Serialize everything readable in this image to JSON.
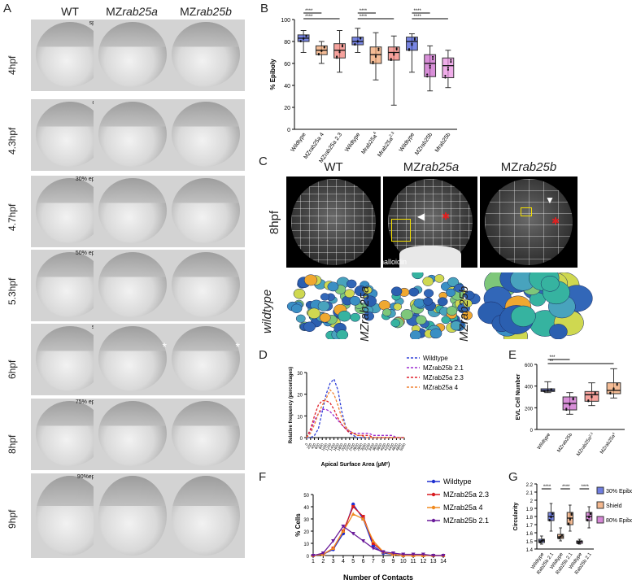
{
  "panels": {
    "A": "A",
    "B": "B",
    "C": "C",
    "D": "D",
    "E": "E",
    "F": "F",
    "G": "G"
  },
  "panelA": {
    "columns": [
      "WT",
      "MZrab25a",
      "MZrab25b"
    ],
    "rows": [
      {
        "time": "4hpf",
        "stage": "sphere"
      },
      {
        "time": "4.3hpf",
        "stage": "dome"
      },
      {
        "time": "4.7hpf",
        "stage": "30% epiboly"
      },
      {
        "time": "5.3hpf",
        "stage": "50% epiboly"
      },
      {
        "time": "6hpf",
        "stage": "shield"
      },
      {
        "time": "8hpf",
        "stage": "75% epiboly"
      },
      {
        "time": "9hpf",
        "stage": "90%epiboly"
      }
    ],
    "asterisk": "*"
  },
  "panelC": {
    "columns": [
      "WT",
      "MZrab25a",
      "MZrab25b"
    ],
    "row_label": "8hpf",
    "stain": "Phalloidin",
    "segmentation_labels": [
      "wildtype",
      "MZrab25a",
      "MZrab25b"
    ]
  },
  "chart_data": [
    {
      "id": "B",
      "type": "box",
      "ylabel": "% Epiboly",
      "ylim": [
        0,
        100
      ],
      "yticks": [
        0,
        20,
        40,
        60,
        80,
        100
      ],
      "categories": [
        "Wildtype",
        "MZrab25a 4",
        "MZrab25a 2.3",
        "Wildtype",
        "Mrab25a",
        "Mrab25a",
        "Wildtype",
        "MZrab25b",
        "Mrab25b"
      ],
      "category_sup": [
        "",
        "",
        "",
        "",
        "4",
        "2.3",
        "",
        "",
        ""
      ],
      "colors": [
        "#3f51d6",
        "#f0a06a",
        "#f27b73",
        "#3f51d6",
        "#f0a06a",
        "#f27b73",
        "#3f51d6",
        "#c85fc8",
        "#e88ae0"
      ],
      "boxes": [
        {
          "min": 70,
          "q1": 80,
          "med": 83,
          "q3": 86,
          "max": 90
        },
        {
          "min": 60,
          "q1": 68,
          "med": 72,
          "q3": 76,
          "max": 80
        },
        {
          "min": 52,
          "q1": 65,
          "med": 72,
          "q3": 78,
          "max": 90
        },
        {
          "min": 70,
          "q1": 77,
          "med": 80,
          "q3": 84,
          "max": 92
        },
        {
          "min": 45,
          "q1": 60,
          "med": 68,
          "q3": 75,
          "max": 88
        },
        {
          "min": 22,
          "q1": 63,
          "med": 70,
          "q3": 75,
          "max": 85
        },
        {
          "min": 52,
          "q1": 72,
          "med": 80,
          "q3": 84,
          "max": 87
        },
        {
          "min": 35,
          "q1": 48,
          "med": 60,
          "q3": 68,
          "max": 76
        },
        {
          "min": 38,
          "q1": 47,
          "med": 58,
          "q3": 65,
          "max": 72
        }
      ],
      "significance": [
        {
          "from": 0,
          "to": 1,
          "label": "****"
        },
        {
          "from": 0,
          "to": 2,
          "label": "****"
        },
        {
          "from": 3,
          "to": 4,
          "label": "****"
        },
        {
          "from": 3,
          "to": 5,
          "label": "****"
        },
        {
          "from": 6,
          "to": 7,
          "label": "****"
        },
        {
          "from": 6,
          "to": 8,
          "label": "****"
        }
      ]
    },
    {
      "id": "D",
      "type": "line",
      "xlabel": "Apical Surface Area",
      "xlabel_unit": "(µM²)",
      "ylabel": "Relative frequency (percentages)",
      "ylim": [
        0,
        30
      ],
      "yticks": [
        0,
        10,
        20,
        30
      ],
      "x": [
        0,
        200,
        400,
        600,
        800,
        1000,
        1200,
        1400,
        1600,
        1800,
        2000,
        2200,
        2400,
        2600,
        2800,
        3000,
        3200,
        3400,
        3600,
        3800,
        4000,
        4200,
        4400,
        4600,
        4800,
        5000
      ],
      "series": [
        {
          "name": "Wildtype",
          "color": "#3040d8",
          "values": [
            0,
            0,
            1,
            4,
            12,
            20,
            25,
            27,
            22,
            12,
            5,
            2,
            1,
            0,
            0,
            0,
            0,
            0,
            0,
            0,
            0,
            0,
            0,
            0,
            0,
            0
          ]
        },
        {
          "name": "MZrab25b 2.1",
          "color": "#9b2bd0",
          "values": [
            0,
            3,
            8,
            11,
            13,
            13,
            12,
            10,
            8,
            6,
            4,
            3,
            2,
            2,
            2,
            2,
            2,
            1,
            1,
            1,
            1,
            1,
            1,
            0,
            0,
            0
          ]
        },
        {
          "name": "MZrab25a 2.3",
          "color": "#e0202a",
          "values": [
            0,
            4,
            10,
            15,
            17,
            17,
            16,
            13,
            9,
            6,
            4,
            2,
            2,
            1,
            1,
            1,
            1,
            0,
            0,
            0,
            0,
            0,
            0,
            0,
            0,
            0
          ]
        },
        {
          "name": "MZrab25a 4",
          "color": "#f08030",
          "values": [
            0,
            2,
            6,
            11,
            15,
            18,
            22,
            20,
            15,
            9,
            5,
            3,
            2,
            1,
            1,
            0,
            0,
            0,
            0,
            0,
            0,
            0,
            0,
            0,
            0,
            0
          ]
        }
      ]
    },
    {
      "id": "E",
      "type": "box",
      "ylabel": "EVL Cell Number",
      "ylim": [
        0,
        600
      ],
      "yticks": [
        0,
        200,
        400,
        600
      ],
      "categories": [
        "Wildtype",
        "MZrab25b",
        "MZrab25a",
        "MZrab25a"
      ],
      "category_sup": [
        "",
        "",
        "2.3",
        "4"
      ],
      "colors": [
        "#3f51d6",
        "#c85fc8",
        "#f27b73",
        "#f0a06a"
      ],
      "boxes": [
        {
          "min": 340,
          "q1": 350,
          "med": 360,
          "q3": 375,
          "max": 440
        },
        {
          "min": 140,
          "q1": 180,
          "med": 240,
          "q3": 300,
          "max": 340
        },
        {
          "min": 220,
          "q1": 260,
          "med": 320,
          "q3": 350,
          "max": 430
        },
        {
          "min": 290,
          "q1": 330,
          "med": 360,
          "q3": 430,
          "max": 560
        }
      ],
      "significance": [
        {
          "from": 0,
          "to": 1,
          "label": "***"
        },
        {
          "from": 0,
          "to": 3,
          "label": "**"
        }
      ]
    },
    {
      "id": "F",
      "type": "line",
      "xlabel": "Number of Contacts",
      "ylabel": "% Cells",
      "ylim": [
        0,
        50
      ],
      "yticks": [
        0,
        10,
        20,
        30,
        40,
        50
      ],
      "x": [
        1,
        2,
        3,
        4,
        5,
        6,
        7,
        8,
        9,
        10,
        11,
        12,
        13,
        14
      ],
      "series": [
        {
          "name": "Wildtype",
          "color": "#2030d0",
          "marker": "circle",
          "values": [
            0,
            1,
            5,
            18,
            42,
            30,
            8,
            2,
            1,
            0,
            0,
            0,
            0,
            0
          ]
        },
        {
          "name": "MZrab25a 2.3",
          "color": "#d81b20",
          "marker": "square",
          "values": [
            0,
            1,
            6,
            20,
            40,
            32,
            10,
            3,
            1,
            0,
            0,
            0,
            0,
            0
          ]
        },
        {
          "name": "MZrab25a 4",
          "color": "#f08a20",
          "marker": "triangle",
          "values": [
            0,
            1,
            6,
            20,
            34,
            30,
            12,
            3,
            1,
            0,
            0,
            0,
            0,
            0
          ]
        },
        {
          "name": "MZrab25b 2.1",
          "color": "#6a1b9a",
          "marker": "down-triangle",
          "values": [
            0,
            2,
            12,
            24,
            18,
            12,
            6,
            3,
            2,
            1,
            1,
            1,
            0,
            0
          ]
        }
      ]
    },
    {
      "id": "G",
      "type": "box",
      "ylabel": "Circularity",
      "ylim": [
        1.4,
        2.2
      ],
      "yticks": [
        1.4,
        1.5,
        1.6,
        1.7,
        1.8,
        1.9,
        2.0,
        2.1,
        2.2
      ],
      "categories": [
        "Wildtype",
        "Rab25b 2.1",
        "Wildtype",
        "Rab25b 2.1",
        "Wildtype",
        "Rab25b 2.1"
      ],
      "colors": [
        "#3f51d6",
        "#3f51d6",
        "#f0a06a",
        "#f0a06a",
        "#c85fc8",
        "#c85fc8"
      ],
      "boxes": [
        {
          "min": 1.46,
          "q1": 1.48,
          "med": 1.5,
          "q3": 1.52,
          "max": 1.56
        },
        {
          "min": 1.62,
          "q1": 1.75,
          "med": 1.8,
          "q3": 1.85,
          "max": 1.96
        },
        {
          "min": 1.5,
          "q1": 1.53,
          "med": 1.55,
          "q3": 1.58,
          "max": 1.66
        },
        {
          "min": 1.62,
          "q1": 1.7,
          "med": 1.78,
          "q3": 1.85,
          "max": 1.94
        },
        {
          "min": 1.46,
          "q1": 1.47,
          "med": 1.49,
          "q3": 1.5,
          "max": 1.52
        },
        {
          "min": 1.66,
          "q1": 1.75,
          "med": 1.8,
          "q3": 1.85,
          "max": 1.92
        }
      ],
      "legend": [
        {
          "name": "30% Epiboly",
          "color": "#3f51d6"
        },
        {
          "name": "Shield",
          "color": "#f0a06a"
        },
        {
          "name": "80% Epiboly",
          "color": "#c85fc8"
        }
      ],
      "significance": [
        {
          "from": 0,
          "to": 1,
          "label": "****"
        },
        {
          "from": 2,
          "to": 3,
          "label": "****"
        },
        {
          "from": 4,
          "to": 5,
          "label": "****"
        }
      ]
    }
  ]
}
